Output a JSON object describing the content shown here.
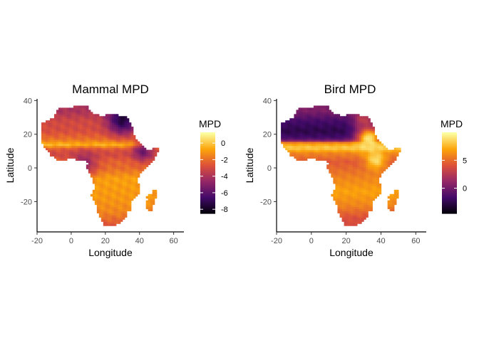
{
  "chart_data": [
    {
      "type": "heatmap",
      "title": "Mammal MPD",
      "xlabel": "Longitude",
      "ylabel": "Latitude",
      "xlim": [
        -20,
        66
      ],
      "ylim": [
        -38,
        41
      ],
      "x_ticks": [
        -20,
        0,
        20,
        40,
        60
      ],
      "y_ticks": [
        -20,
        0,
        20,
        40
      ],
      "grid": false,
      "legend": {
        "title": "MPD",
        "position": "right",
        "range": [
          -8.5,
          1.3
        ],
        "ticks": [
          0,
          -2,
          -4,
          -6,
          -8
        ],
        "palette": [
          "#000004",
          "#420a68",
          "#932667",
          "#dd513a",
          "#fca50a",
          "#fcffa4"
        ]
      },
      "surface": {
        "base": -2.2,
        "lat_bands": [
          {
            "lat": 34,
            "value": -4.0
          },
          {
            "lat": 28,
            "value": -3.0
          },
          {
            "lat": 22,
            "value": -2.8
          },
          {
            "lat": 17,
            "value": -1.8
          },
          {
            "lat": 14,
            "value": -0.2
          },
          {
            "lat": 11,
            "value": -2.6
          },
          {
            "lat": 8,
            "value": -3.0
          },
          {
            "lat": 4,
            "value": -2.2
          },
          {
            "lat": 0,
            "value": -2.0
          },
          {
            "lat": -6,
            "value": -0.8
          },
          {
            "lat": -12,
            "value": -0.9
          },
          {
            "lat": -18,
            "value": -1.0
          },
          {
            "lat": -26,
            "value": -1.4
          },
          {
            "lat": -34,
            "value": -2.6
          }
        ],
        "hotspots": [
          {
            "lon": 30,
            "lat": 29,
            "radius": 6,
            "value": -7.5
          },
          {
            "lon": 42,
            "lat": 10,
            "radius": 4,
            "value": -5.5
          },
          {
            "lon": 8,
            "lat": 3,
            "radius": 5,
            "value": -4.5
          }
        ]
      }
    },
    {
      "type": "heatmap",
      "title": "Bird MPD",
      "xlabel": "Longitude",
      "ylabel": "Latitude",
      "xlim": [
        -20,
        66
      ],
      "ylim": [
        -38,
        41
      ],
      "x_ticks": [
        -20,
        0,
        20,
        40,
        60
      ],
      "y_ticks": [
        -20,
        0,
        20,
        40
      ],
      "grid": false,
      "legend": {
        "title": "MPD",
        "position": "right",
        "range": [
          -4.5,
          10
        ],
        "ticks": [
          5,
          0
        ],
        "palette": [
          "#000004",
          "#420a68",
          "#932667",
          "#dd513a",
          "#fca50a",
          "#fcffa4"
        ]
      },
      "surface": {
        "base": 5.0,
        "lat_bands": [
          {
            "lat": 34,
            "value": 0.5
          },
          {
            "lat": 28,
            "value": -1.5
          },
          {
            "lat": 22,
            "value": -2.5
          },
          {
            "lat": 18,
            "value": -1.5
          },
          {
            "lat": 16,
            "value": 1.5
          },
          {
            "lat": 15,
            "value": 6.5
          },
          {
            "lat": 12,
            "value": 8.5
          },
          {
            "lat": 9,
            "value": 6.0
          },
          {
            "lat": 4,
            "value": 4.5
          },
          {
            "lat": 0,
            "value": 5.0
          },
          {
            "lat": -6,
            "value": 6.0
          },
          {
            "lat": -14,
            "value": 7.0
          },
          {
            "lat": -22,
            "value": 6.0
          },
          {
            "lat": -30,
            "value": 4.0
          }
        ],
        "hotspots": [
          {
            "lon": 33,
            "lat": 18,
            "radius": 5,
            "value": 9.5
          },
          {
            "lon": 37,
            "lat": 5,
            "radius": 4,
            "value": 9.0
          },
          {
            "lon": 30,
            "lat": 29,
            "radius": 4,
            "value": 3.0
          }
        ]
      }
    }
  ],
  "africa_outline": [
    [
      -17,
      21
    ],
    [
      -17,
      27
    ],
    [
      -13,
      28
    ],
    [
      -9.5,
      31
    ],
    [
      -9,
      33.5
    ],
    [
      -6,
      35.8
    ],
    [
      -2,
      35.2
    ],
    [
      3,
      36.8
    ],
    [
      10,
      37.2
    ],
    [
      11,
      33
    ],
    [
      15,
      32
    ],
    [
      19,
      30.5
    ],
    [
      21,
      32.5
    ],
    [
      25,
      31.8
    ],
    [
      29.5,
      31
    ],
    [
      32.5,
      31.2
    ],
    [
      34,
      28
    ],
    [
      36,
      23
    ],
    [
      37.5,
      18
    ],
    [
      39.5,
      15.5
    ],
    [
      42.5,
      12.5
    ],
    [
      44,
      11
    ],
    [
      51.2,
      11.8
    ],
    [
      51,
      10
    ],
    [
      48,
      4.5
    ],
    [
      42,
      -1
    ],
    [
      39.5,
      -5
    ],
    [
      39,
      -8
    ],
    [
      40.5,
      -11
    ],
    [
      40.5,
      -15
    ],
    [
      36,
      -18.5
    ],
    [
      35,
      -22
    ],
    [
      35.5,
      -24
    ],
    [
      33,
      -26
    ],
    [
      32,
      -28.5
    ],
    [
      30,
      -31
    ],
    [
      26,
      -34
    ],
    [
      22,
      -34.5
    ],
    [
      18.5,
      -34.5
    ],
    [
      18,
      -31
    ],
    [
      16.5,
      -28.5
    ],
    [
      15,
      -26.5
    ],
    [
      14.5,
      -22
    ],
    [
      12,
      -18
    ],
    [
      11.8,
      -16
    ],
    [
      13.6,
      -12
    ],
    [
      13,
      -9
    ],
    [
      12,
      -5.5
    ],
    [
      9.5,
      -2
    ],
    [
      9.3,
      1
    ],
    [
      9.7,
      3.5
    ],
    [
      8.5,
      4.5
    ],
    [
      5.5,
      4.3
    ],
    [
      1,
      5.5
    ],
    [
      -3,
      5
    ],
    [
      -7.5,
      4.4
    ],
    [
      -12,
      7.5
    ],
    [
      -13.5,
      9.5
    ],
    [
      -15,
      11
    ],
    [
      -17,
      14.7
    ]
  ],
  "madagascar_outline": [
    [
      49.2,
      -12
    ],
    [
      50.4,
      -15.5
    ],
    [
      49.8,
      -17
    ],
    [
      48.2,
      -22
    ],
    [
      47,
      -25
    ],
    [
      45.2,
      -25.5
    ],
    [
      43.8,
      -23.5
    ],
    [
      43.4,
      -21.5
    ],
    [
      44.5,
      -19
    ],
    [
      44,
      -17
    ],
    [
      46.3,
      -15.7
    ],
    [
      48.2,
      -13.5
    ]
  ]
}
